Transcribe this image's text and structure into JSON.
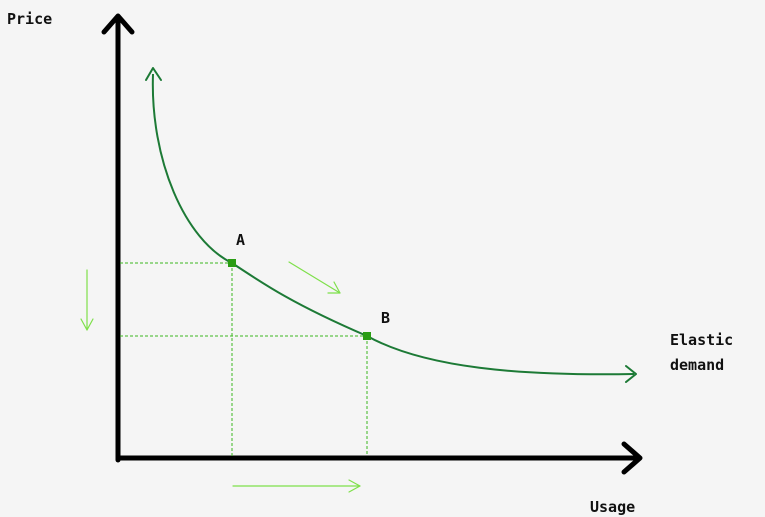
{
  "axes": {
    "y_label": "Price",
    "x_label": "Usage"
  },
  "curve": {
    "label_line1": "Elastic",
    "label_line2": "demand"
  },
  "points": {
    "a_label": "A",
    "b_label": "B"
  },
  "colors": {
    "background": "#f5f5f5",
    "axis": "#000000",
    "curve": "#1d7a36",
    "point": "#2a9d14",
    "guide": "#3cb81e",
    "movement_arrow": "#7ee04a",
    "text": "#111111"
  }
}
